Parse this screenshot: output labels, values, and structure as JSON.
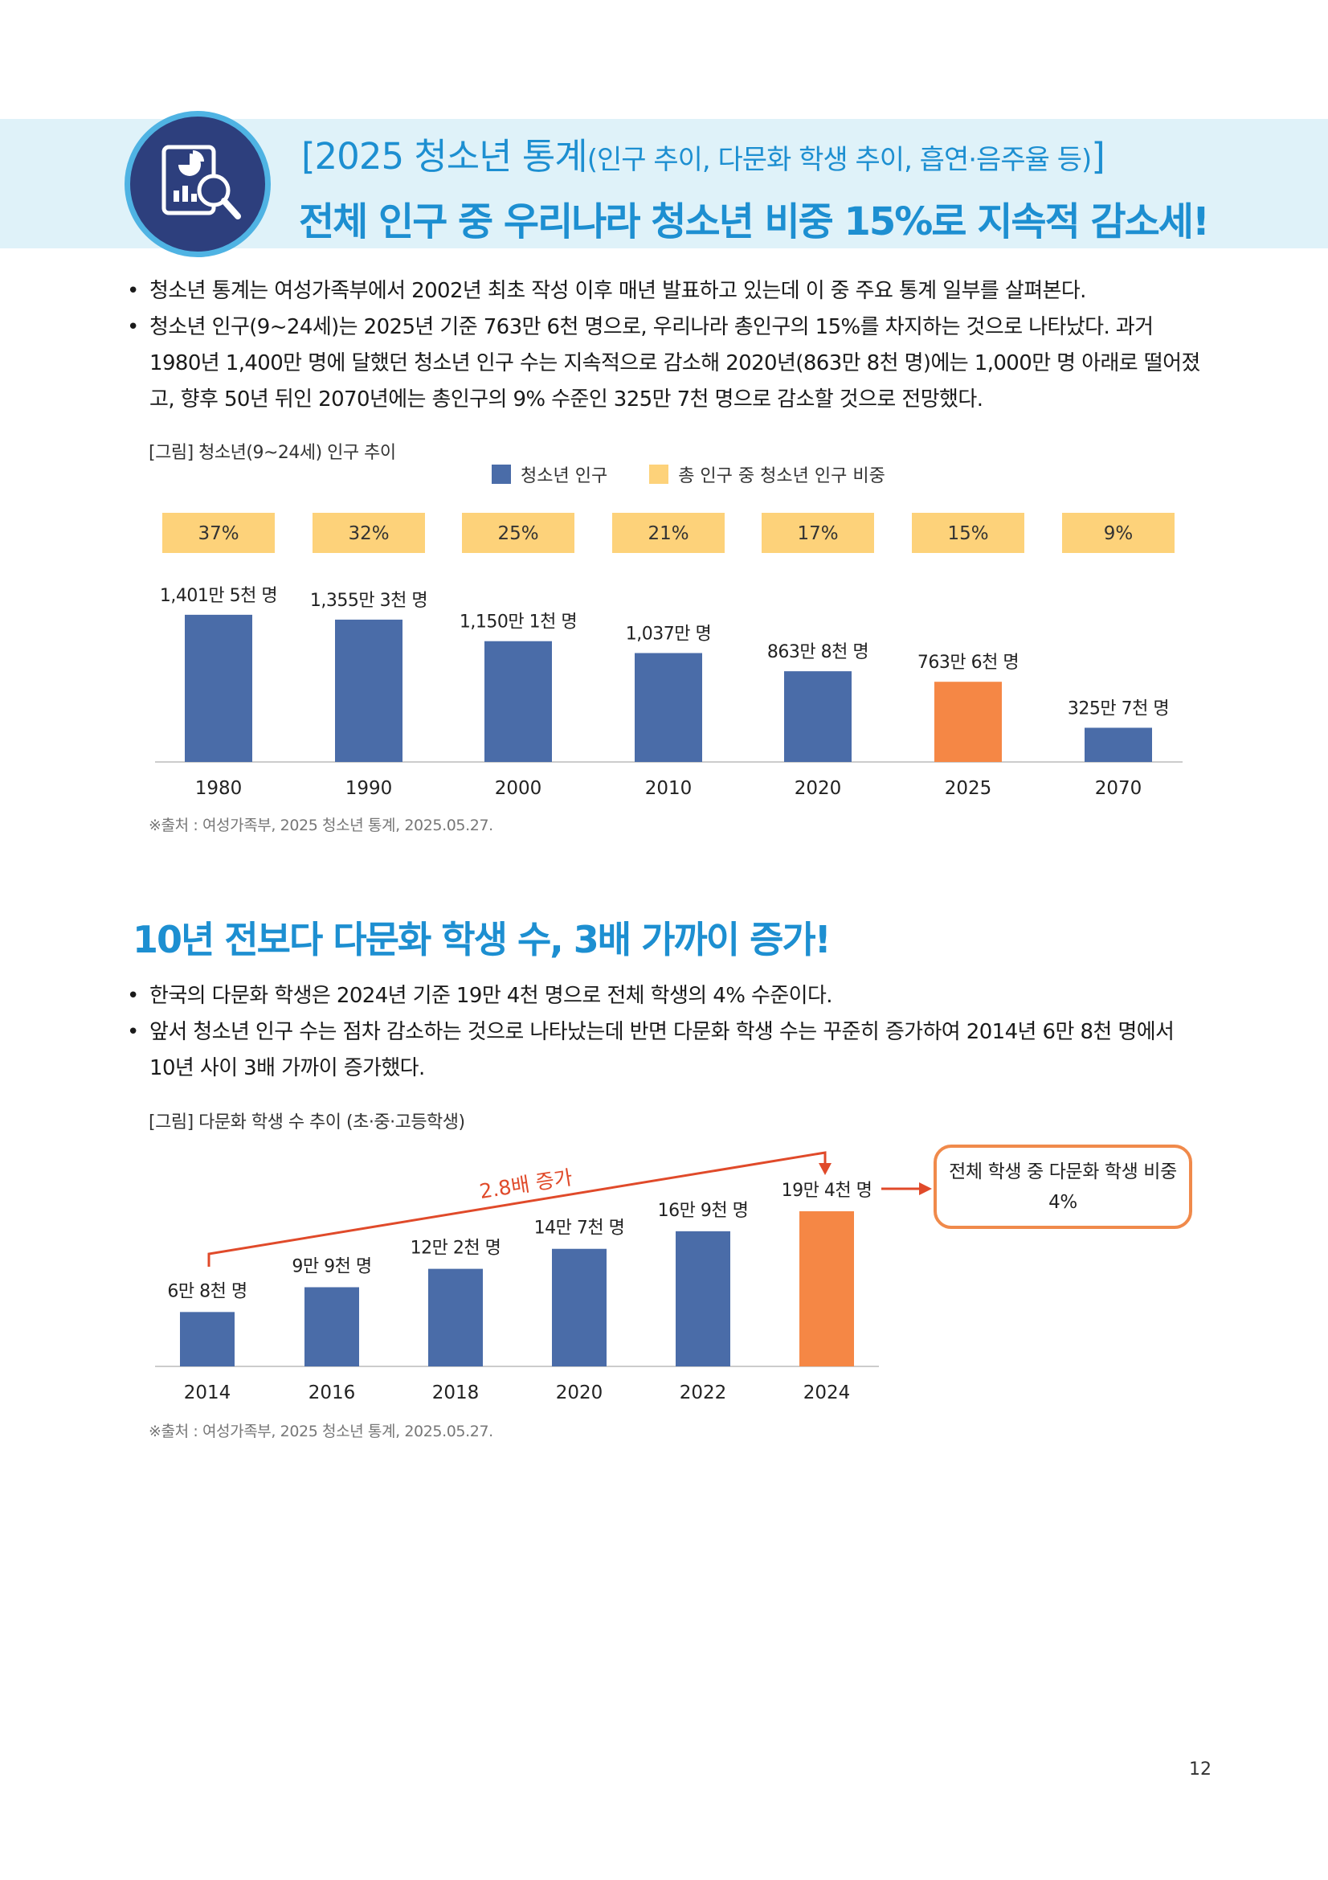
{
  "header": {
    "title_main": "[2025 청소년 통계",
    "title_paren": "(인구 추이, 다문화 학생 추이, 흡연·음주율 등)",
    "title_close": "]",
    "subtitle": "전체 인구 중 우리나라 청소년 비중 15%로 지속적 감소세!",
    "icon": "report-analysis-icon"
  },
  "section1": {
    "bullets": [
      "청소년 통계는 여성가족부에서 2002년 최초 작성 이후 매년 발표하고 있는데 이 중 주요 통계 일부를 살펴본다.",
      "청소년 인구(9~24세)는 2025년 기준 763만 6천 명으로, 우리나라 총인구의 15%를 차지하는 것으로 나타났다. 과거 1980년 1,400만 명에 달했던 청소년 인구 수는 지속적으로 감소해 2020년(863만 8천 명)에는 1,000만 명 아래로 떨어졌고, 향후 50년 뒤인 2070년에는 총인구의 9% 수준인 325만 7천 명으로 감소할 것으로 전망했다."
    ],
    "figure_caption": "[그림] 청소년(9~24세) 인구 추이",
    "legend": {
      "series1": "청소년 인구",
      "series2": "총 인구 중 청소년 인구 비중"
    },
    "source": "※출처 : 여성가족부, 2025 청소년 통계, 2025.05.27."
  },
  "section2": {
    "title": "10년 전보다 다문화 학생 수, 3배 가까이 증가!",
    "bullets": [
      "한국의 다문화 학생은 2024년 기준 19만 4천 명으로 전체 학생의 4% 수준이다.",
      "앞서 청소년 인구 수는 점차 감소하는 것으로 나타났는데 반면 다문화 학생 수는 꾸준히 증가하여 2014년 6만 8천 명에서 10년 사이 3배 가까이 증가했다."
    ],
    "figure_caption": "[그림] 다문화 학생 수 추이 (초·중·고등학생)",
    "callout_line1": "전체 학생 중 다문화 학생 비중",
    "callout_line2": "4%",
    "source": "※출처 : 여성가족부, 2025 청소년 통계, 2025.05.27."
  },
  "colors": {
    "bar_blue": "#4a6ca8",
    "bar_highlight": "#f58745",
    "percent_box": "#fdd27a",
    "accent_blue": "#1d8fd1",
    "arrow_red": "#e04a2a"
  },
  "chart_data": [
    {
      "type": "bar",
      "categories": [
        "1980",
        "1990",
        "2000",
        "2010",
        "2020",
        "2025",
        "2070"
      ],
      "series": [
        {
          "name": "청소년 인구",
          "values": [
            1401.5,
            1355.3,
            1150.1,
            1037,
            863.8,
            763.6,
            325.7
          ],
          "labels": [
            "1,401만 5천 명",
            "1,355만 3천 명",
            "1,150만 1천 명",
            "1,037만 명",
            "863만 8천 명",
            "763만 6천 명",
            "325만 7천 명"
          ],
          "highlight_index": 5
        },
        {
          "name": "총 인구 중 청소년 인구 비중",
          "values": [
            37,
            32,
            25,
            21,
            17,
            15,
            9
          ],
          "labels": [
            "37%",
            "32%",
            "25%",
            "21%",
            "17%",
            "15%",
            "9%"
          ]
        }
      ],
      "ylim": [
        0,
        1500
      ]
    },
    {
      "type": "bar",
      "categories": [
        "2014",
        "2016",
        "2018",
        "2020",
        "2022",
        "2024"
      ],
      "values": [
        6.8,
        9.9,
        12.2,
        14.7,
        16.9,
        19.4
      ],
      "labels": [
        "6만 8천 명",
        "9만 9천 명",
        "12만 2천 명",
        "14만 7천 명",
        "16만 9천 명",
        "19만 4천 명"
      ],
      "highlight_index": 5,
      "annotation": "2.8배 증가",
      "ylim": [
        0,
        20
      ]
    }
  ],
  "page_number": "12"
}
